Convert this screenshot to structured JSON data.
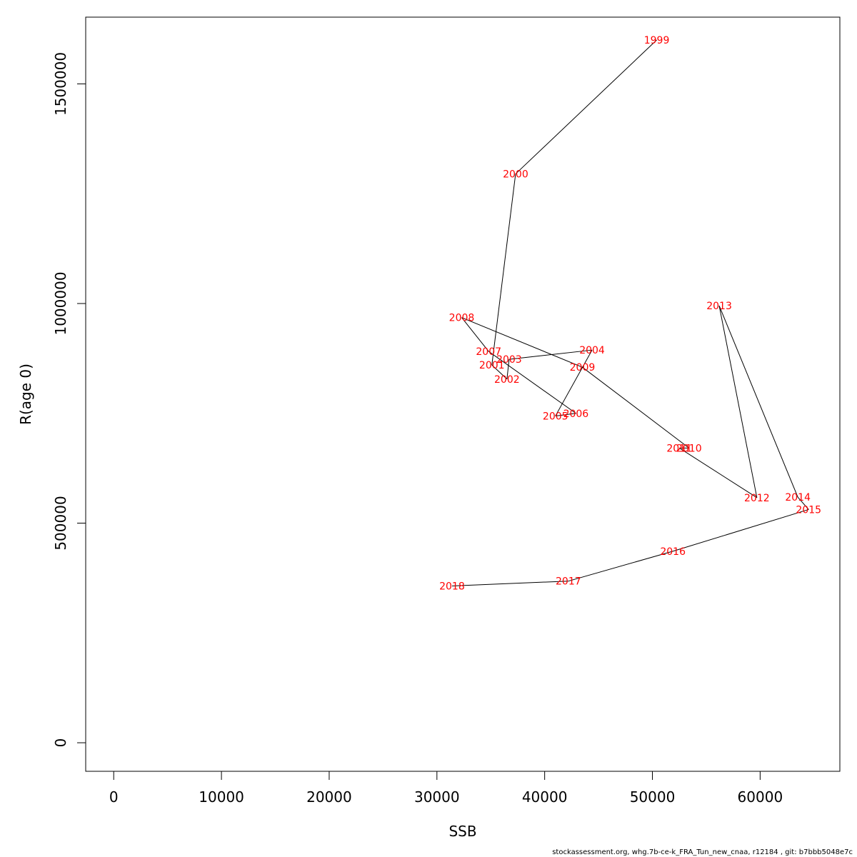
{
  "chart_data": {
    "type": "line",
    "title": "",
    "xlabel": "SSB",
    "ylabel": "R(age 0)",
    "xlim": [
      -2600,
      67400
    ],
    "ylim": [
      -65000,
      1652000
    ],
    "x_ticks": [
      0,
      10000,
      20000,
      30000,
      40000,
      50000,
      60000
    ],
    "y_ticks": [
      0,
      500000,
      1000000,
      1500000
    ],
    "grid": false,
    "legend": "none",
    "point_label_color": "#ff0000",
    "line_color": "#000000",
    "series": [
      {
        "points": [
          {
            "label": "1999",
            "x": 50400,
            "y": 1600000
          },
          {
            "label": "2000",
            "x": 37300,
            "y": 1295000
          },
          {
            "label": "2001",
            "x": 35100,
            "y": 860000
          },
          {
            "label": "2002",
            "x": 36500,
            "y": 828000
          },
          {
            "label": "2003",
            "x": 36700,
            "y": 873000
          },
          {
            "label": "2004",
            "x": 44400,
            "y": 894000
          },
          {
            "label": "2005",
            "x": 41000,
            "y": 744000
          },
          {
            "label": "2006",
            "x": 42900,
            "y": 750000
          },
          {
            "label": "2007",
            "x": 34800,
            "y": 891000
          },
          {
            "label": "2008",
            "x": 32300,
            "y": 968000
          },
          {
            "label": "2009",
            "x": 43500,
            "y": 855000
          },
          {
            "label": "2010",
            "x": 53400,
            "y": 671000
          },
          {
            "label": "2011",
            "x": 52500,
            "y": 671000
          },
          {
            "label": "2012",
            "x": 59700,
            "y": 558000
          },
          {
            "label": "2013",
            "x": 56200,
            "y": 995000
          },
          {
            "label": "2014",
            "x": 63500,
            "y": 559000
          },
          {
            "label": "2015",
            "x": 64500,
            "y": 531000
          },
          {
            "label": "2016",
            "x": 51900,
            "y": 436000
          },
          {
            "label": "2017",
            "x": 42200,
            "y": 368000
          },
          {
            "label": "2018",
            "x": 31400,
            "y": 357000
          }
        ]
      }
    ]
  },
  "footer": "stockassessment.org, whg.7b-ce-k_FRA_Tun_new_cnaa, r12184 , git: b7bbb5048e7c"
}
